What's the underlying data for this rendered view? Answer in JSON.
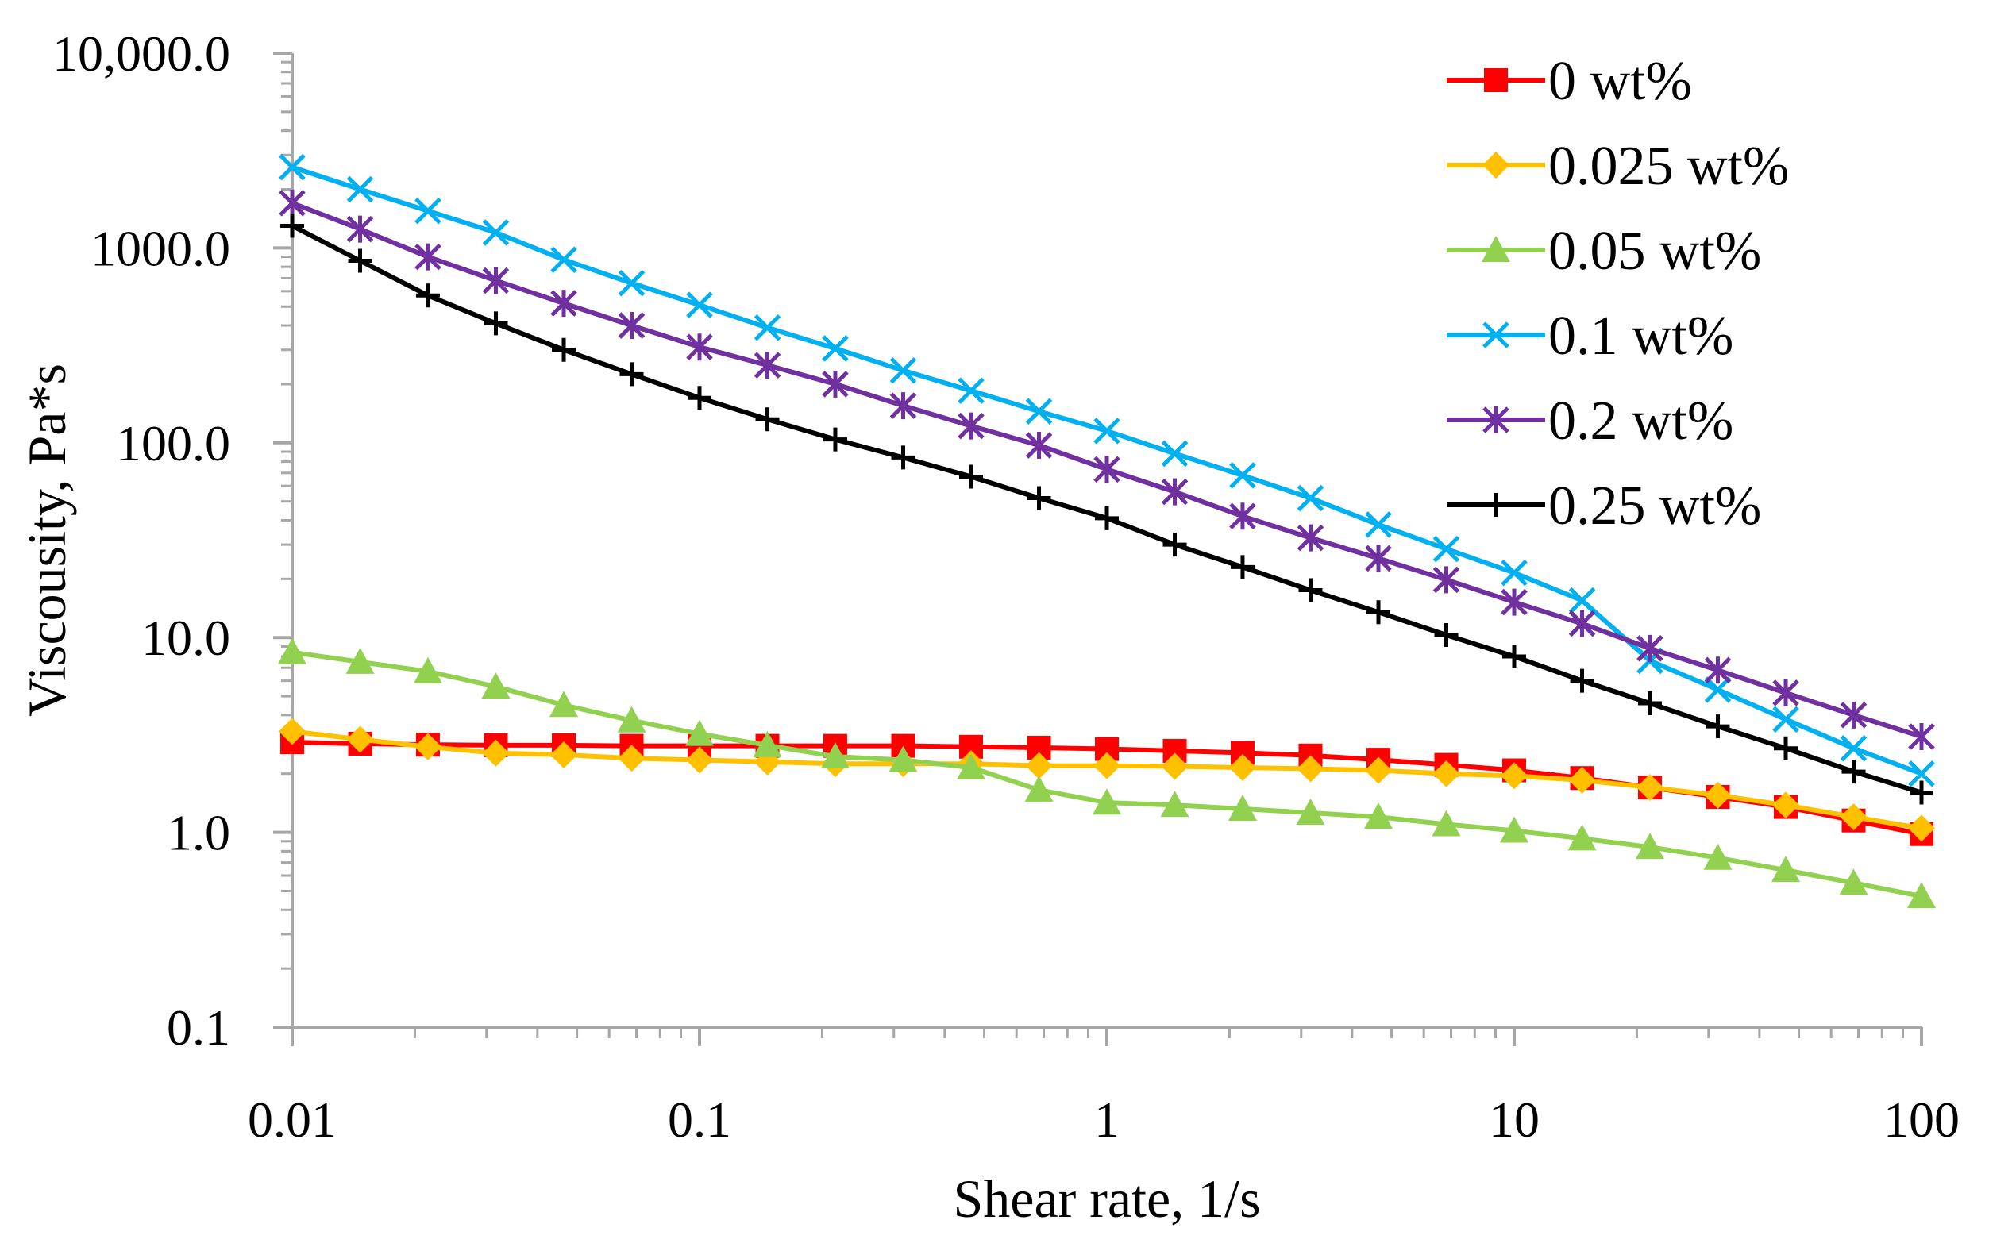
{
  "chart_data": {
    "type": "line",
    "title": "",
    "xlabel": "Shear rate, 1/s",
    "ylabel": "Viscousity, Pa*s",
    "xscale": "log",
    "yscale": "log",
    "xlim": [
      0.01,
      100
    ],
    "ylim": [
      0.1,
      10000
    ],
    "x_tick_labels": [
      "0.01",
      "0.1",
      "1",
      "10",
      "100"
    ],
    "y_tick_labels": [
      "0.1",
      "1.0",
      "10.0",
      "100.0",
      "1000.0",
      "10,000.0"
    ],
    "grid": false,
    "legend_position": "top-right",
    "x": [
      0.01,
      0.01468,
      0.02154,
      0.03162,
      0.04642,
      0.06813,
      0.1,
      0.1468,
      0.2154,
      0.3162,
      0.4642,
      0.6813,
      1,
      1.468,
      2.154,
      3.162,
      4.642,
      6.813,
      10,
      14.68,
      21.54,
      31.62,
      46.42,
      68.13,
      100
    ],
    "series": [
      {
        "name": "0 wt%",
        "color": "#ff0000",
        "marker": "square",
        "values": [
          2.9,
          2.85,
          2.82,
          2.8,
          2.8,
          2.78,
          2.78,
          2.78,
          2.78,
          2.78,
          2.75,
          2.72,
          2.68,
          2.62,
          2.56,
          2.48,
          2.36,
          2.22,
          2.08,
          1.9,
          1.7,
          1.52,
          1.35,
          1.15,
          0.98
        ]
      },
      {
        "name": "0.025 wt%",
        "color": "#ffc000",
        "marker": "diamond",
        "values": [
          3.3,
          3.0,
          2.75,
          2.55,
          2.5,
          2.4,
          2.35,
          2.3,
          2.25,
          2.25,
          2.25,
          2.2,
          2.2,
          2.18,
          2.15,
          2.12,
          2.08,
          2.0,
          1.95,
          1.85,
          1.7,
          1.55,
          1.38,
          1.2,
          1.05
        ]
      },
      {
        "name": "0.05 wt%",
        "color": "#92d050",
        "marker": "triangle",
        "values": [
          8.4,
          7.5,
          6.7,
          5.6,
          4.5,
          3.75,
          3.2,
          2.8,
          2.45,
          2.35,
          2.15,
          1.65,
          1.42,
          1.38,
          1.32,
          1.26,
          1.2,
          1.1,
          1.02,
          0.93,
          0.84,
          0.74,
          0.64,
          0.55,
          0.47
        ]
      },
      {
        "name": "0.1 wt%",
        "color": "#00b0f0",
        "marker": "x",
        "values": [
          2600,
          2000,
          1550,
          1200,
          870,
          660,
          510,
          390,
          305,
          235,
          185,
          145,
          115,
          88,
          68,
          52,
          38,
          28.5,
          21.5,
          15.5,
          7.6,
          5.4,
          3.8,
          2.7,
          2.0
        ]
      },
      {
        "name": "0.2 wt%",
        "color": "#7030a0",
        "marker": "asterisk",
        "values": [
          1700,
          1250,
          900,
          680,
          520,
          400,
          310,
          250,
          200,
          155,
          122,
          97,
          73,
          56,
          42,
          32.5,
          25.5,
          19.8,
          15.2,
          11.8,
          8.8,
          6.8,
          5.2,
          4.0,
          3.1
        ]
      },
      {
        "name": "0.25 wt%",
        "color": "#000000",
        "marker": "plus",
        "values": [
          1300,
          860,
          570,
          410,
          300,
          225,
          170,
          132,
          104,
          84,
          67,
          52,
          41,
          30,
          23,
          17.5,
          13.5,
          10.3,
          8.0,
          6.0,
          4.6,
          3.5,
          2.7,
          2.05,
          1.6
        ]
      }
    ]
  }
}
